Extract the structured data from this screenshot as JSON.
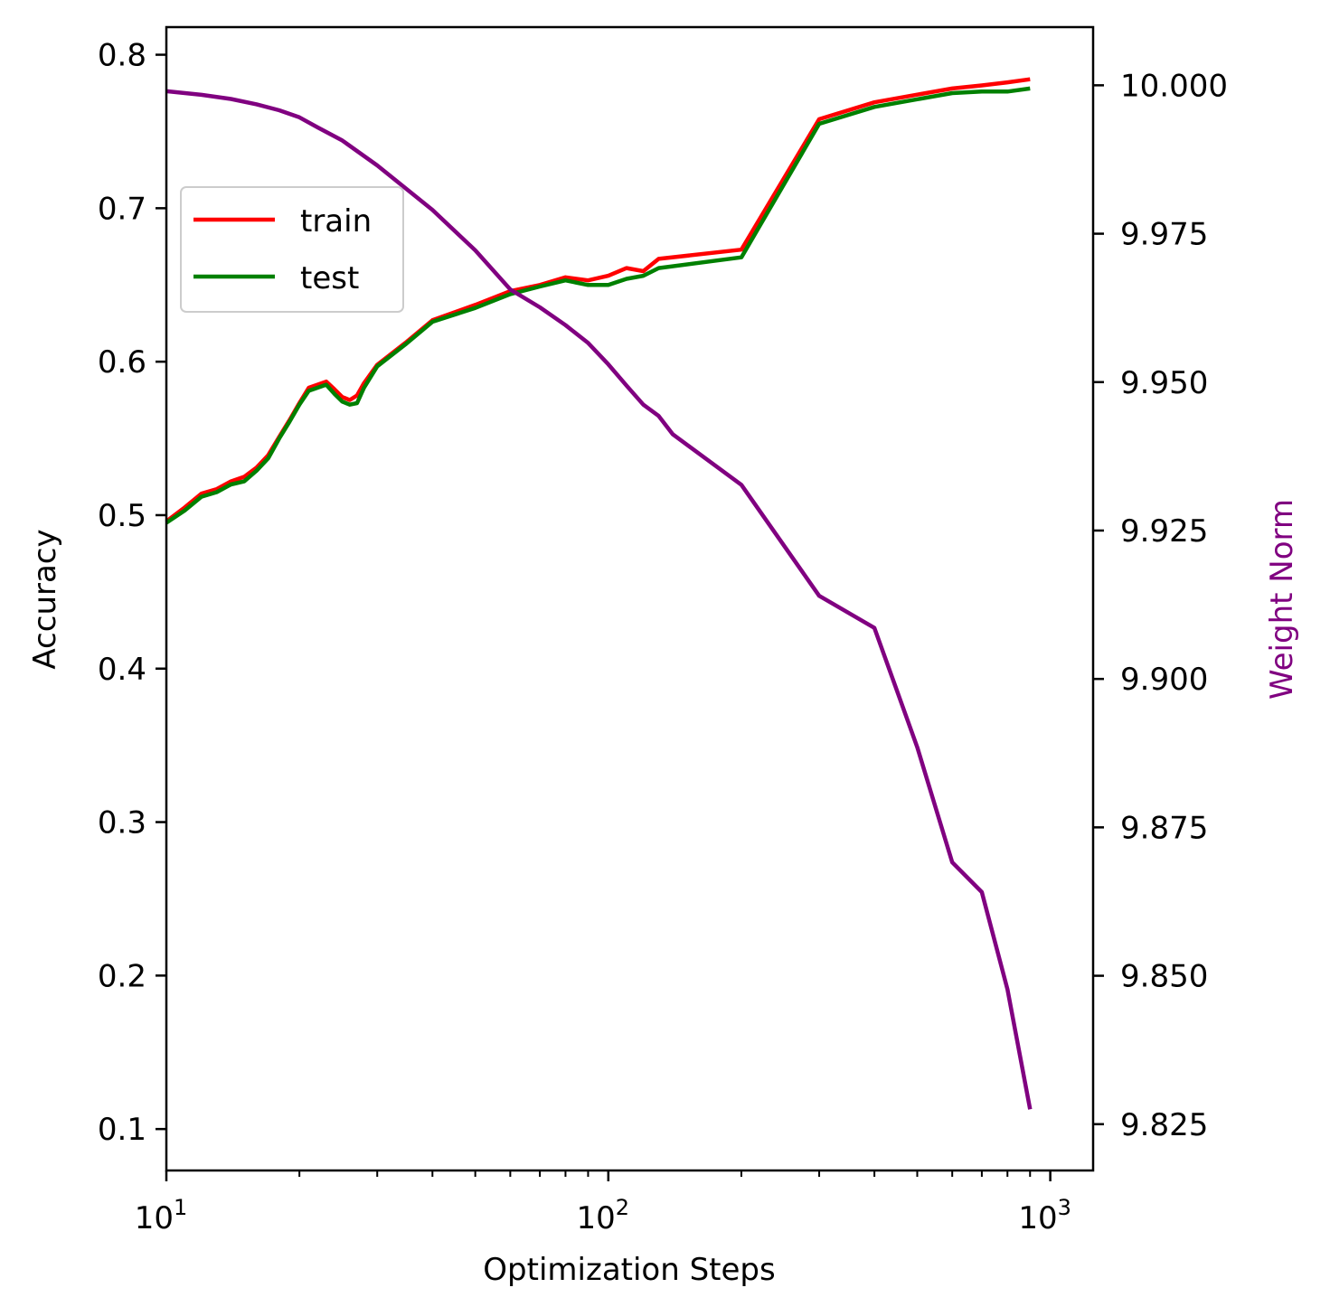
{
  "chart_data": {
    "type": "line",
    "xlabel": "Optimization Steps",
    "ylabel_left": "Accuracy",
    "ylabel_right": "Weight Norm",
    "x_scale": "log",
    "xlim": [
      10,
      1250
    ],
    "ylim_left": [
      0.073,
      0.818
    ],
    "ylim_right": [
      9.8172,
      10.0098
    ],
    "x_ticks": [
      {
        "value": 10,
        "base": "10",
        "exp": "1"
      },
      {
        "value": 100,
        "base": "10",
        "exp": "2"
      },
      {
        "value": 1000,
        "base": "10",
        "exp": "3"
      }
    ],
    "x_minor_ticks": [
      20,
      30,
      40,
      50,
      60,
      70,
      80,
      90,
      200,
      300,
      400,
      500,
      600,
      700,
      800,
      900
    ],
    "y_ticks_left": [
      "0.1",
      "0.2",
      "0.3",
      "0.4",
      "0.5",
      "0.6",
      "0.7",
      "0.8"
    ],
    "y_ticks_right": [
      "9.825",
      "9.850",
      "9.875",
      "9.900",
      "9.925",
      "9.950",
      "9.975",
      "10.000"
    ],
    "legend_position": "upper-left",
    "grid": false,
    "series": [
      {
        "name": "train",
        "axis": "left",
        "color": "#ff0000",
        "x": [
          10,
          11,
          12,
          13,
          14,
          15,
          16,
          17,
          18,
          19,
          20,
          21,
          23,
          24,
          25,
          26,
          27,
          28,
          30,
          35,
          40,
          50,
          60,
          70,
          80,
          90,
          100,
          110,
          120,
          130,
          200,
          300,
          400,
          500,
          600,
          700,
          800,
          900
        ],
        "values": [
          0.496,
          0.505,
          0.514,
          0.517,
          0.522,
          0.525,
          0.531,
          0.539,
          0.551,
          0.562,
          0.573,
          0.583,
          0.587,
          0.582,
          0.577,
          0.575,
          0.578,
          0.586,
          0.598,
          0.613,
          0.627,
          0.637,
          0.646,
          0.65,
          0.655,
          0.653,
          0.656,
          0.661,
          0.659,
          0.667,
          0.673,
          0.758,
          0.769,
          0.774,
          0.778,
          0.78,
          0.782,
          0.784
        ]
      },
      {
        "name": "test",
        "axis": "left",
        "color": "#008000",
        "x": [
          10,
          11,
          12,
          13,
          14,
          15,
          16,
          17,
          18,
          19,
          20,
          21,
          23,
          24,
          25,
          26,
          27,
          28,
          30,
          35,
          40,
          50,
          60,
          70,
          80,
          90,
          100,
          110,
          120,
          130,
          200,
          300,
          400,
          500,
          600,
          700,
          800,
          900
        ],
        "values": [
          0.495,
          0.503,
          0.512,
          0.515,
          0.52,
          0.522,
          0.529,
          0.537,
          0.55,
          0.561,
          0.572,
          0.581,
          0.585,
          0.579,
          0.574,
          0.572,
          0.573,
          0.583,
          0.597,
          0.612,
          0.626,
          0.635,
          0.644,
          0.649,
          0.653,
          0.65,
          0.65,
          0.654,
          0.656,
          0.661,
          0.668,
          0.755,
          0.766,
          0.771,
          0.775,
          0.776,
          0.776,
          0.778
        ]
      },
      {
        "name": "",
        "axis": "right",
        "color": "#800080",
        "x": [
          10,
          12,
          14,
          16,
          18,
          20,
          22,
          25,
          30,
          40,
          50,
          60,
          70,
          80,
          90,
          100,
          110,
          120,
          130,
          140,
          200,
          300,
          400,
          500,
          600,
          700,
          800,
          900
        ],
        "values": [
          9.999,
          9.9984,
          9.9977,
          9.9968,
          9.9958,
          9.9946,
          9.9929,
          9.9907,
          9.9865,
          9.979,
          9.9722,
          9.9656,
          9.9626,
          9.9596,
          9.9566,
          9.953,
          9.9494,
          9.9462,
          9.9443,
          9.9412,
          9.9327,
          9.914,
          9.9086,
          9.8885,
          9.8691,
          9.8641,
          9.8477,
          9.8275
        ]
      }
    ]
  }
}
